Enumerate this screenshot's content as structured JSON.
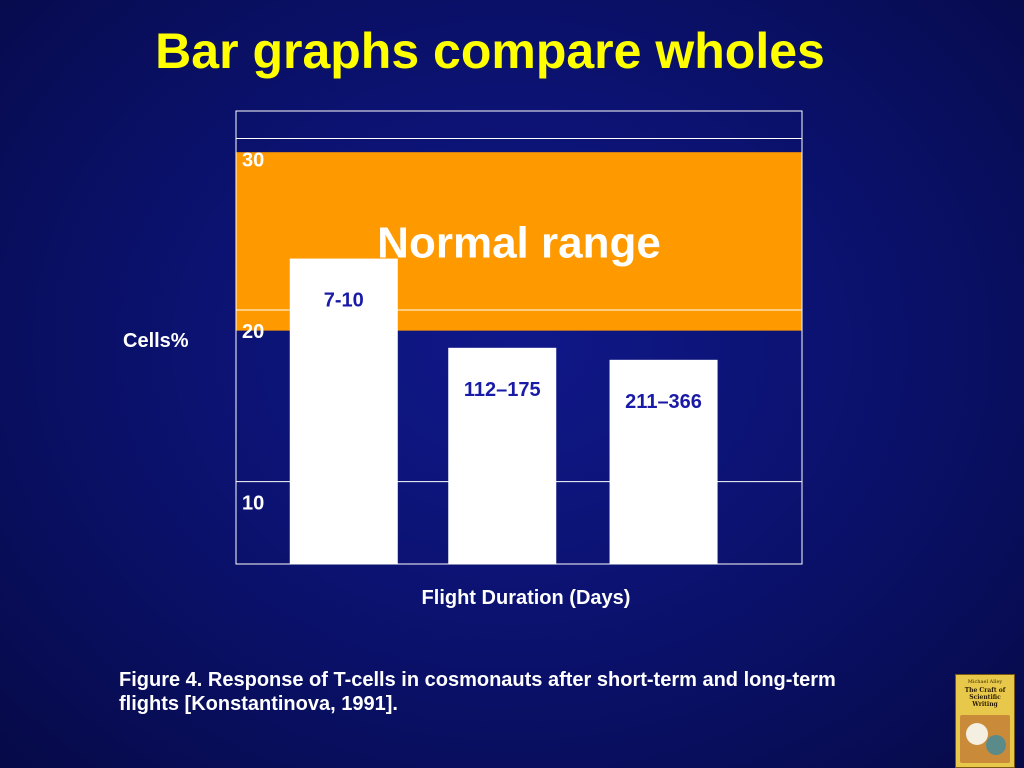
{
  "title": "Bar graphs compare wholes",
  "chart_data": {
    "type": "bar",
    "categories": [
      "7-10",
      "112–175",
      "211–366"
    ],
    "values": [
      23.0,
      17.8,
      17.1
    ],
    "ylabel": "Cells%",
    "xlabel": "Flight Duration (Days)",
    "ylim": [
      5.2,
      31.6
    ],
    "yticks": [
      "10",
      "20",
      "30"
    ],
    "reference_band": {
      "label": "Normal range",
      "from": 18.8,
      "to": 29.2,
      "color": "#ff9900"
    },
    "bar_color": "#ffffff",
    "label_color": "#1a1aa8",
    "grid": true
  },
  "caption": "Figure 4. Response of T-cells in cosmonauts after short-term and long-term flights [Konstantinova, 1991].",
  "book": {
    "author": "Michael Alley",
    "title": "The Craft of Scientific Writing",
    "edition": "Third Edition"
  }
}
